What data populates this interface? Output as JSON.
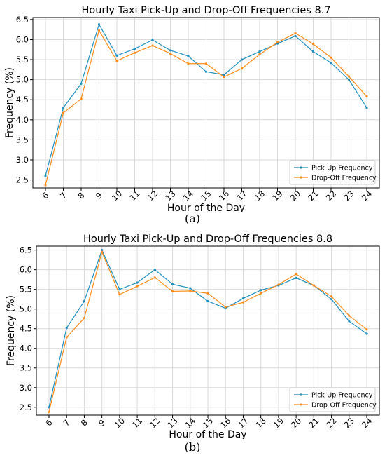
{
  "chart_data": [
    {
      "type": "line",
      "title": "Hourly Taxi Pick-Up and Drop-Off Frequencies 8.7",
      "xlabel": "Hour of the Day",
      "ylabel": "Frequency (%)",
      "caption": "(a)",
      "x": [
        6,
        7,
        8,
        9,
        10,
        11,
        12,
        13,
        14,
        15,
        16,
        17,
        18,
        19,
        20,
        21,
        22,
        23,
        24
      ],
      "ylim": [
        2.3,
        6.55
      ],
      "yticks": [
        2.5,
        3.0,
        3.5,
        4.0,
        4.5,
        5.0,
        5.5,
        6.0,
        6.5
      ],
      "grid": true,
      "legend": "lower-right",
      "series": [
        {
          "name": "Pick-Up Frequency",
          "color": "#1f8fbf",
          "values": [
            2.6,
            4.3,
            4.9,
            6.38,
            5.6,
            5.77,
            5.99,
            5.73,
            5.59,
            5.2,
            5.12,
            5.5,
            5.7,
            5.9,
            6.09,
            5.7,
            5.42,
            5.0,
            4.3
          ]
        },
        {
          "name": "Drop-Off Frequency",
          "color": "#ff8c1a",
          "values": [
            2.37,
            4.17,
            4.52,
            6.23,
            5.47,
            5.67,
            5.85,
            5.65,
            5.4,
            5.4,
            5.07,
            5.28,
            5.63,
            5.93,
            6.16,
            5.89,
            5.55,
            5.08,
            4.58
          ]
        }
      ]
    },
    {
      "type": "line",
      "title": "Hourly Taxi Pick-Up and Drop-Off Frequencies 8.8",
      "xlabel": "Hour of the Day",
      "ylabel": "Frequency (%)",
      "caption": "(b)",
      "x": [
        6,
        7,
        8,
        9,
        10,
        11,
        12,
        13,
        14,
        15,
        16,
        17,
        18,
        19,
        20,
        21,
        22,
        23,
        24
      ],
      "ylim": [
        2.3,
        6.6
      ],
      "yticks": [
        2.5,
        3.0,
        3.5,
        4.0,
        4.5,
        5.0,
        5.5,
        6.0,
        6.5
      ],
      "grid": true,
      "legend": "lower-right",
      "series": [
        {
          "name": "Pick-Up Frequency",
          "color": "#1f8fbf",
          "values": [
            2.5,
            4.52,
            5.2,
            6.5,
            5.5,
            5.67,
            6.0,
            5.63,
            5.53,
            5.2,
            5.02,
            5.27,
            5.48,
            5.6,
            5.79,
            5.6,
            5.25,
            4.69,
            4.37
          ]
        },
        {
          "name": "Drop-Off Frequency",
          "color": "#ff8c1a",
          "values": [
            2.38,
            4.28,
            4.77,
            6.45,
            5.37,
            5.58,
            5.8,
            5.45,
            5.46,
            5.4,
            5.05,
            5.17,
            5.4,
            5.62,
            5.89,
            5.6,
            5.32,
            4.83,
            4.48
          ]
        }
      ]
    }
  ]
}
